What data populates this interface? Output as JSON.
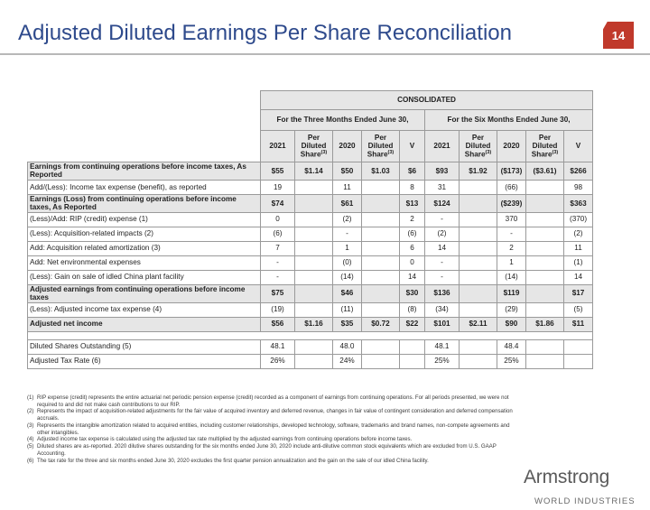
{
  "title": "Adjusted Diluted Earnings Per Share Reconciliation",
  "page_number": "14",
  "table": {
    "consolidated_label": "CONSOLIDATED",
    "period_three": "For the Three Months Ended June 30,",
    "period_six": "For the  Six Months Ended June 30,",
    "columns": [
      "2021",
      "Per Diluted Share",
      "2020",
      "Per Diluted Share",
      "V",
      "2021",
      "Per Diluted Share",
      "2020",
      "Per Diluted Share",
      "V"
    ],
    "per_share_footnote": "(3)",
    "rows": [
      {
        "label": "Earnings from continuing operations before income taxes, As Reported",
        "bold": true,
        "shade": true,
        "values": [
          "$55",
          "$1.14",
          "$50",
          "$1.03",
          "$6",
          "$93",
          "$1.92",
          "($173)",
          "($3.61)",
          "$266"
        ]
      },
      {
        "label": "Add/(Less): Income tax expense (benefit), as reported",
        "bold": false,
        "shade": false,
        "values": [
          "19",
          "",
          "11",
          "",
          "8",
          "31",
          "",
          "(66)",
          "",
          "98"
        ]
      },
      {
        "label": "Earnings (Loss) from continuing operations before income taxes, As Reported",
        "bold": true,
        "shade": true,
        "values": [
          "$74",
          "",
          "$61",
          "",
          "$13",
          "$124",
          "",
          "($239)",
          "",
          "$363"
        ]
      },
      {
        "label": "(Less)/Add: RIP (credit) expense (1)",
        "bold": false,
        "shade": false,
        "values": [
          "0",
          "",
          "(2)",
          "",
          "2",
          "-",
          "",
          "370",
          "",
          "(370)"
        ]
      },
      {
        "label": "(Less): Acquisition-related impacts (2)",
        "bold": false,
        "shade": false,
        "values": [
          "(6)",
          "",
          "-",
          "",
          "(6)",
          "(2)",
          "",
          "-",
          "",
          "(2)"
        ]
      },
      {
        "label": "Add: Acquisition related amortization (3)",
        "bold": false,
        "shade": false,
        "values": [
          "7",
          "",
          "1",
          "",
          "6",
          "14",
          "",
          "2",
          "",
          "11"
        ]
      },
      {
        "label": "Add: Net environmental expenses",
        "bold": false,
        "shade": false,
        "values": [
          "-",
          "",
          "(0)",
          "",
          "0",
          "-",
          "",
          "1",
          "",
          "(1)"
        ]
      },
      {
        "label": "(Less): Gain on sale of idled China plant facility",
        "bold": false,
        "shade": false,
        "values": [
          "-",
          "",
          "(14)",
          "",
          "14",
          "-",
          "",
          "(14)",
          "",
          "14"
        ]
      },
      {
        "label": "Adjusted earnings from continuing operations before income taxes",
        "bold": true,
        "shade": true,
        "values": [
          "$75",
          "",
          "$46",
          "",
          "$30",
          "$136",
          "",
          "$119",
          "",
          "$17"
        ]
      },
      {
        "label": "(Less): Adjusted income tax expense (4)",
        "bold": false,
        "shade": false,
        "values": [
          "(19)",
          "",
          "(11)",
          "",
          "(8)",
          "(34)",
          "",
          "(29)",
          "",
          "(5)"
        ]
      },
      {
        "label": "Adjusted net income",
        "bold": true,
        "shade": true,
        "values": [
          "$56",
          "$1.16",
          "$35",
          "$0.72",
          "$22",
          "$101",
          "$2.11",
          "$90",
          "$1.86",
          "$11"
        ]
      },
      {
        "label": "Diluted Shares Outstanding (5)",
        "bold": false,
        "shade": false,
        "values": [
          "48.1",
          "",
          "48.0",
          "",
          "",
          "48.1",
          "",
          "48.4",
          "",
          ""
        ]
      },
      {
        "label": "Adjusted Tax Rate (6)",
        "bold": false,
        "shade": false,
        "values": [
          "26%",
          "",
          "24%",
          "",
          "",
          "25%",
          "",
          "25%",
          "",
          ""
        ]
      }
    ]
  },
  "footnotes": [
    {
      "num": "(1)",
      "text": "RIP expense (credit) represents the entire actuarial net periodic pension expense (credit) recorded as a component of earnings from continuing operations. For all periods presented, we were not required to and did not make cash contributions to our RIP."
    },
    {
      "num": "(2)",
      "text": "Represents the impact of acquisition-related adjustments for the fair value of acquired inventory and deferred revenue, changes in fair value of contingent consideration and deferred compensation accruals."
    },
    {
      "num": "(3)",
      "text": " Represents the intangible amortization related to acquired entities, including customer relationships, developed technology, software, trademarks and brand names, non-compete agreements and other intangibles."
    },
    {
      "num": "(4)",
      "text": "Adjusted income tax expense is calculated using the adjusted tax rate multiplied by the adjusted earnings from continuing operations before income taxes."
    },
    {
      "num": "(5)",
      "text": "Diluted shares are as-reported. 2020 dilutive shares outstanding for the six months ended June 30, 2020 include anti-dilutive common stock equivalents which are excluded from U.S. GAAP Accounting."
    },
    {
      "num": "(6)",
      "text": "The tax rate for the three and six months ended June 30, 2020 excludes the first quarter pension annualization and the gain on the sale of our idled China facility."
    }
  ],
  "logo": {
    "word": "Armstrong",
    "sub": "WORLD INDUSTRIES"
  },
  "colors": {
    "title": "#2e4a8c",
    "badge": "#c0392b",
    "header_fill": "#e6e6e6"
  }
}
